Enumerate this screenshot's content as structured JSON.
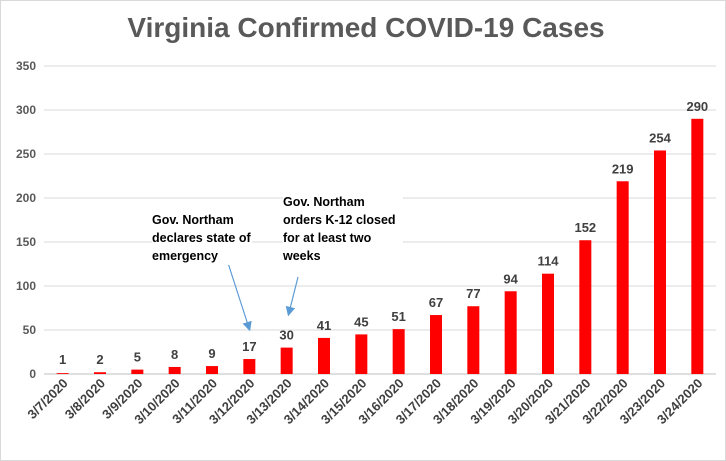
{
  "chart_data": {
    "type": "bar",
    "title": "Virginia Confirmed COVID-19 Cases",
    "xlabel": "",
    "ylabel": "",
    "ylim": [
      0,
      350
    ],
    "yticks": [
      0,
      50,
      100,
      150,
      200,
      250,
      300,
      350
    ],
    "grid": true,
    "legend": "none",
    "bar_color": "#ff0000",
    "categories": [
      "3/7/2020",
      "3/8/2020",
      "3/9/2020",
      "3/10/2020",
      "3/11/2020",
      "3/12/2020",
      "3/13/2020",
      "3/14/2020",
      "3/15/2020",
      "3/16/2020",
      "3/17/2020",
      "3/18/2020",
      "3/19/2020",
      "3/20/2020",
      "3/21/2020",
      "3/22/2020",
      "3/23/2020",
      "3/24/2020"
    ],
    "values": [
      1,
      2,
      5,
      8,
      9,
      17,
      30,
      41,
      45,
      51,
      67,
      77,
      94,
      114,
      152,
      219,
      254,
      290
    ],
    "annotations": [
      {
        "text": "Gov. Northam declares state of emergency",
        "category": "3/12/2020"
      },
      {
        "text": "Gov. Northam orders K-12 closed for at least two weeks",
        "category": "3/13/2020"
      }
    ]
  }
}
